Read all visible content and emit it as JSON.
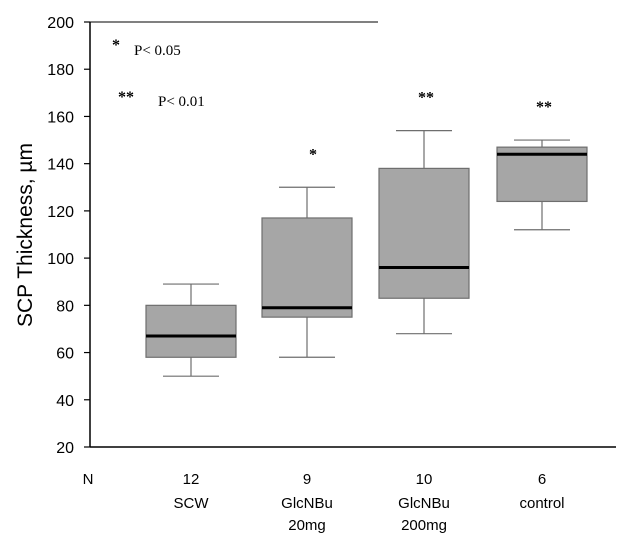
{
  "chart_data": {
    "type": "box",
    "ylabel": "SCP Thickness, µm",
    "ylim": [
      20,
      200
    ],
    "yticks": [
      20,
      40,
      60,
      80,
      100,
      120,
      140,
      160,
      180,
      200
    ],
    "n_label": "N",
    "annotations": [
      {
        "symbol": "*",
        "text": "P< 0.05"
      },
      {
        "symbol": "**",
        "text": "P< 0.01"
      }
    ],
    "groups": [
      {
        "n": "12",
        "label_lines": [
          "SCW"
        ],
        "whisker_low": 50,
        "q1": 58,
        "median": 67,
        "q3": 80,
        "whisker_high": 89,
        "significance": ""
      },
      {
        "n": "9",
        "label_lines": [
          "GlcNBu",
          "20mg"
        ],
        "whisker_low": 58,
        "q1": 75,
        "median": 79,
        "q3": 117,
        "whisker_high": 130,
        "significance": "*"
      },
      {
        "n": "10",
        "label_lines": [
          "GlcNBu",
          "200mg"
        ],
        "whisker_low": 68,
        "q1": 83,
        "median": 96,
        "q3": 138,
        "whisker_high": 154,
        "significance": "**"
      },
      {
        "n": "6",
        "label_lines": [
          "control"
        ],
        "whisker_low": 112,
        "q1": 124,
        "median": 144,
        "q3": 147,
        "whisker_high": 150,
        "significance": "**"
      }
    ],
    "colors": {
      "box_fill": "#a6a6a6",
      "box_stroke": "#6e6e6e",
      "median": "#000000",
      "axis": "#000000"
    }
  }
}
